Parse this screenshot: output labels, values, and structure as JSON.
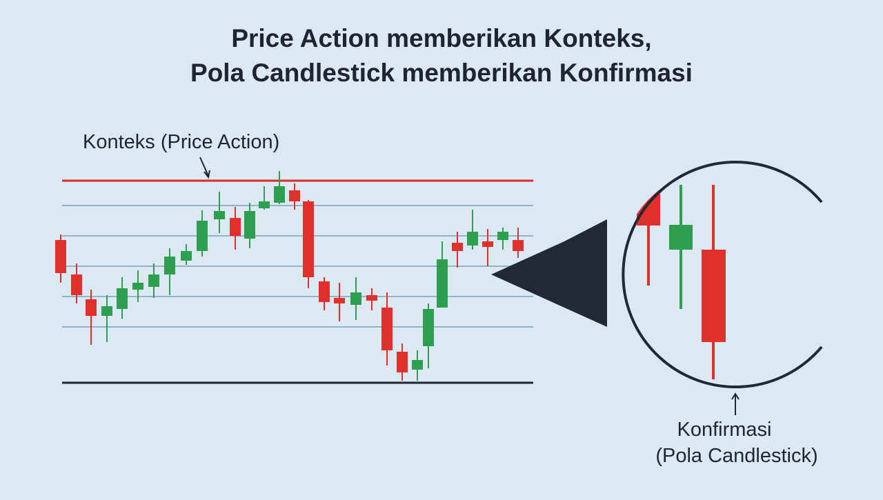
{
  "header": {
    "title_lines": [
      "Price Action memberikan Konteks,",
      "Pola Candlestick memberikan Konfirmasi"
    ]
  },
  "labels": {
    "context": "Konteks (Price Action)",
    "confirmation_lines": [
      "Konfirmasi",
      "(Pola Candlestick)"
    ]
  }
}
